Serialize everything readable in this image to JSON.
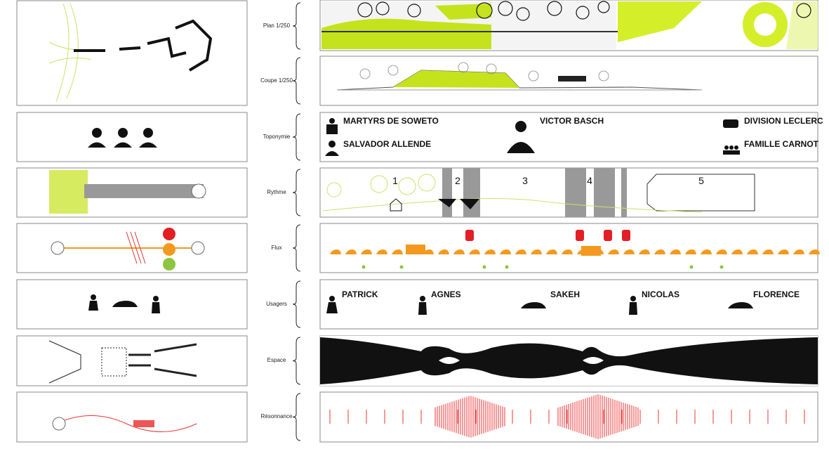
{
  "row_labels": [
    "Plan 1/250",
    "Coupe 1/250",
    "Toponymie",
    "Rythme",
    "Flux",
    "Usagers",
    "Espace",
    "Résonnance"
  ],
  "toponymie": {
    "names": [
      "MARTYRS DE SOWETO",
      "SALVADOR ALLENDE",
      "VICTOR BASCH",
      "DIVISION LECLERC",
      "FAMILLE CARNOT"
    ]
  },
  "rythme": {
    "labels": [
      "1",
      "2",
      "3",
      "4",
      "5"
    ]
  },
  "usagers": {
    "names": [
      "PATRICK",
      "AGNES",
      "SAKEH",
      "NICOLAS",
      "FLORENCE"
    ]
  }
}
